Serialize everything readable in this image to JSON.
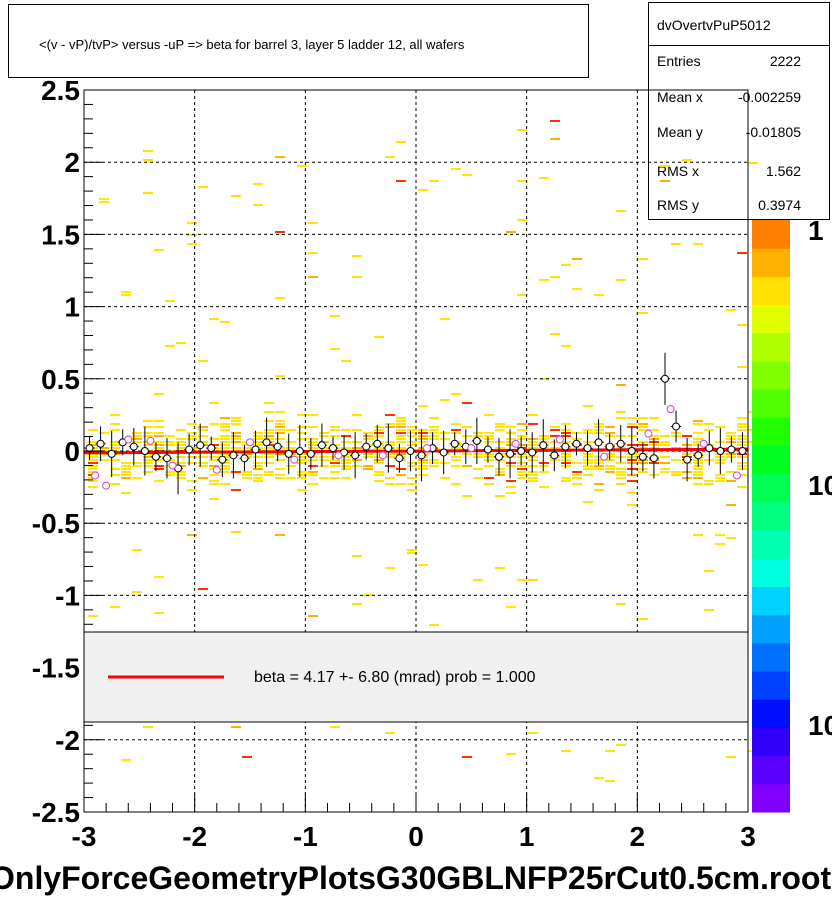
{
  "title": "<(v - vP)/tvP> versus  -uP => beta for barrel 3, layer 5 ladder 12, all wafers",
  "stats": {
    "name": "dvOvertvPuP5012",
    "rows": [
      {
        "label": "Entries",
        "value": "2222"
      },
      {
        "label": "Mean x",
        "value": "-0.002259"
      },
      {
        "label": "Mean y",
        "value": "-0.01805"
      },
      {
        "label": "RMS x",
        "value": "1.562"
      },
      {
        "label": "RMS y",
        "value": "0.3974"
      }
    ]
  },
  "legend": {
    "text": "beta =    4.17 +-  6.80 (mrad) prob = 1.000",
    "line_color": "#ff0000"
  },
  "footer": "OnlyForceGeometryPlotsG30GBLNFP25rCut0.5cm.root",
  "palette_labels": [
    "1",
    "10",
    "10"
  ],
  "colors": {
    "fit_line": "#ff0000",
    "grid": "#000000",
    "palette": [
      "#7f00ff",
      "#5a00ff",
      "#3000ff",
      "#0010ff",
      "#0040ff",
      "#0070ff",
      "#00a0ff",
      "#00d0ff",
      "#00ffe0",
      "#00ffb0",
      "#00ff80",
      "#00ff50",
      "#00ff20",
      "#20ff00",
      "#50ff00",
      "#80ff00",
      "#b0ff00",
      "#e0ff00",
      "#ffe000",
      "#ffb000",
      "#ff8000"
    ]
  },
  "chart_data": {
    "type": "scatter",
    "title": "<(v - vP)/tvP> versus  -uP => beta for barrel 3, layer 5 ladder 12, all wafers",
    "xlim": [
      -3,
      3
    ],
    "ylim": [
      -2.5,
      2.5
    ],
    "x_ticks": [
      "-3",
      "-2",
      "-1",
      "0",
      "1",
      "2",
      "3"
    ],
    "y_ticks": [
      "-2.5",
      "-2",
      "-1.5",
      "-1",
      "-0.5",
      "0",
      "0.5",
      "1",
      "1.5",
      "2",
      "2.5"
    ],
    "grid": true,
    "fit": {
      "slope_mrad": 4.17,
      "error_mrad": 6.8,
      "intercept": 0.0
    },
    "profile_points": [
      {
        "x": -2.95,
        "y": 0.02
      },
      {
        "x": -2.85,
        "y": 0.05
      },
      {
        "x": -2.75,
        "y": -0.02
      },
      {
        "x": -2.65,
        "y": 0.06
      },
      {
        "x": -2.55,
        "y": 0.03
      },
      {
        "x": -2.45,
        "y": 0.0
      },
      {
        "x": -2.35,
        "y": -0.04
      },
      {
        "x": -2.25,
        "y": -0.05
      },
      {
        "x": -2.15,
        "y": -0.12
      },
      {
        "x": -2.05,
        "y": 0.01
      },
      {
        "x": -1.95,
        "y": 0.04
      },
      {
        "x": -1.85,
        "y": 0.02
      },
      {
        "x": -1.75,
        "y": -0.06
      },
      {
        "x": -1.65,
        "y": -0.03
      },
      {
        "x": -1.55,
        "y": -0.05
      },
      {
        "x": -1.45,
        "y": 0.01
      },
      {
        "x": -1.35,
        "y": 0.06
      },
      {
        "x": -1.25,
        "y": 0.03
      },
      {
        "x": -1.15,
        "y": -0.02
      },
      {
        "x": -1.05,
        "y": 0.0
      },
      {
        "x": -0.95,
        "y": -0.02
      },
      {
        "x": -0.85,
        "y": 0.04
      },
      {
        "x": -0.75,
        "y": 0.02
      },
      {
        "x": -0.65,
        "y": -0.01
      },
      {
        "x": -0.55,
        "y": -0.03
      },
      {
        "x": -0.45,
        "y": 0.03
      },
      {
        "x": -0.35,
        "y": 0.05
      },
      {
        "x": -0.25,
        "y": 0.02
      },
      {
        "x": -0.15,
        "y": -0.05
      },
      {
        "x": -0.05,
        "y": 0.0
      },
      {
        "x": 0.05,
        "y": -0.03
      },
      {
        "x": 0.15,
        "y": 0.02
      },
      {
        "x": 0.25,
        "y": -0.01
      },
      {
        "x": 0.35,
        "y": 0.05
      },
      {
        "x": 0.45,
        "y": 0.03
      },
      {
        "x": 0.55,
        "y": 0.07
      },
      {
        "x": 0.65,
        "y": 0.01
      },
      {
        "x": 0.75,
        "y": -0.04
      },
      {
        "x": 0.85,
        "y": -0.02
      },
      {
        "x": 0.95,
        "y": 0.0
      },
      {
        "x": 1.05,
        "y": -0.01
      },
      {
        "x": 1.15,
        "y": 0.04
      },
      {
        "x": 1.25,
        "y": -0.03
      },
      {
        "x": 1.35,
        "y": 0.03
      },
      {
        "x": 1.45,
        "y": 0.05
      },
      {
        "x": 1.55,
        "y": 0.02
      },
      {
        "x": 1.65,
        "y": 0.06
      },
      {
        "x": 1.75,
        "y": 0.03
      },
      {
        "x": 1.85,
        "y": 0.05
      },
      {
        "x": 1.95,
        "y": 0.0
      },
      {
        "x": 2.05,
        "y": -0.04
      },
      {
        "x": 2.15,
        "y": -0.05
      },
      {
        "x": 2.25,
        "y": 0.5
      },
      {
        "x": 2.35,
        "y": 0.17
      },
      {
        "x": 2.45,
        "y": -0.06
      },
      {
        "x": 2.55,
        "y": -0.03
      },
      {
        "x": 2.65,
        "y": 0.02
      },
      {
        "x": 2.75,
        "y": 0.0
      },
      {
        "x": 2.85,
        "y": 0.01
      },
      {
        "x": 2.95,
        "y": 0.0
      }
    ],
    "pink_points": [
      {
        "x": -2.9,
        "y": -0.17
      },
      {
        "x": -2.8,
        "y": -0.24
      },
      {
        "x": -2.6,
        "y": 0.08
      },
      {
        "x": -2.4,
        "y": 0.07
      },
      {
        "x": -2.2,
        "y": -0.1
      },
      {
        "x": -1.8,
        "y": -0.13
      },
      {
        "x": -1.5,
        "y": 0.06
      },
      {
        "x": -1.1,
        "y": -0.06
      },
      {
        "x": -0.7,
        "y": -0.03
      },
      {
        "x": -0.3,
        "y": -0.03
      },
      {
        "x": 0.1,
        "y": 0.02
      },
      {
        "x": 0.5,
        "y": 0.02
      },
      {
        "x": 0.9,
        "y": 0.05
      },
      {
        "x": 1.3,
        "y": 0.08
      },
      {
        "x": 1.7,
        "y": -0.04
      },
      {
        "x": 2.1,
        "y": 0.12
      },
      {
        "x": 2.3,
        "y": 0.29
      },
      {
        "x": 2.6,
        "y": 0.05
      },
      {
        "x": 2.9,
        "y": -0.17
      }
    ]
  }
}
